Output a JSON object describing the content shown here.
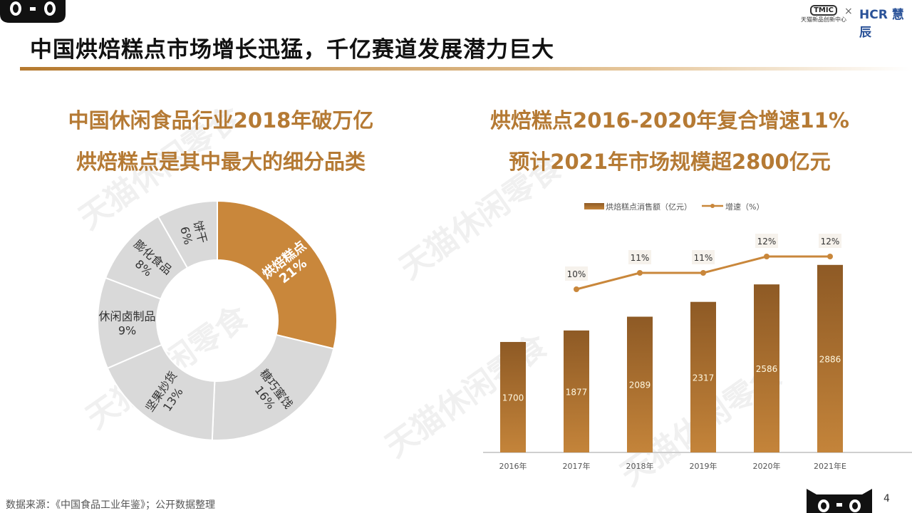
{
  "title": "中国烘焙糕点市场增长迅猛，千亿赛道发展潜力巨大",
  "left_heading": [
    "中国休闲食品行业2018年破万亿",
    "烘焙糕点是其中最大的细分品类"
  ],
  "right_heading": [
    "烘焙糕点2016-2020年复合增速11%",
    "预计2021年市场规模超2800亿元"
  ],
  "logos": {
    "tmic": "TMIC",
    "tmic_sub": "天猫新品创新中心",
    "times": "×",
    "hcr": "HCR 慧辰"
  },
  "watermark": "天猫休闲零食",
  "source": "数据来源：《中国食品工业年鉴》；公开数据整理",
  "page_number": "4",
  "colors": {
    "accent": "#c9873b",
    "bar_top": "#8e5a25",
    "bar_bottom": "#c4843a",
    "slice_grey": "#d9d9d9"
  },
  "chart_data": [
    {
      "type": "pie",
      "donut": true,
      "categories": [
        "烘焙糕点",
        "糖巧蜜饯",
        "坚果炒货",
        "休闲卤制品",
        "膨化食品",
        "饼干"
      ],
      "values": [
        21,
        16,
        13,
        9,
        8,
        6
      ],
      "labels": [
        "21%",
        "16%",
        "13%",
        "9%",
        "8%",
        "6%"
      ],
      "highlight": "烘焙糕点"
    },
    {
      "type": "bar",
      "categories": [
        "2016年",
        "2017年",
        "2018年",
        "2019年",
        "2020年",
        "2021年E"
      ],
      "series": [
        {
          "name": "烘焙糕点消售额（亿元）",
          "type": "bar",
          "values": [
            1700,
            1877,
            2089,
            2317,
            2586,
            2886
          ]
        },
        {
          "name": "增速（%）",
          "type": "line",
          "values": [
            null,
            10,
            11,
            11,
            12,
            12
          ],
          "labels": [
            "",
            "10%",
            "11%",
            "11%",
            "12%",
            "12%"
          ]
        }
      ],
      "legend": "top",
      "grid": false
    }
  ]
}
